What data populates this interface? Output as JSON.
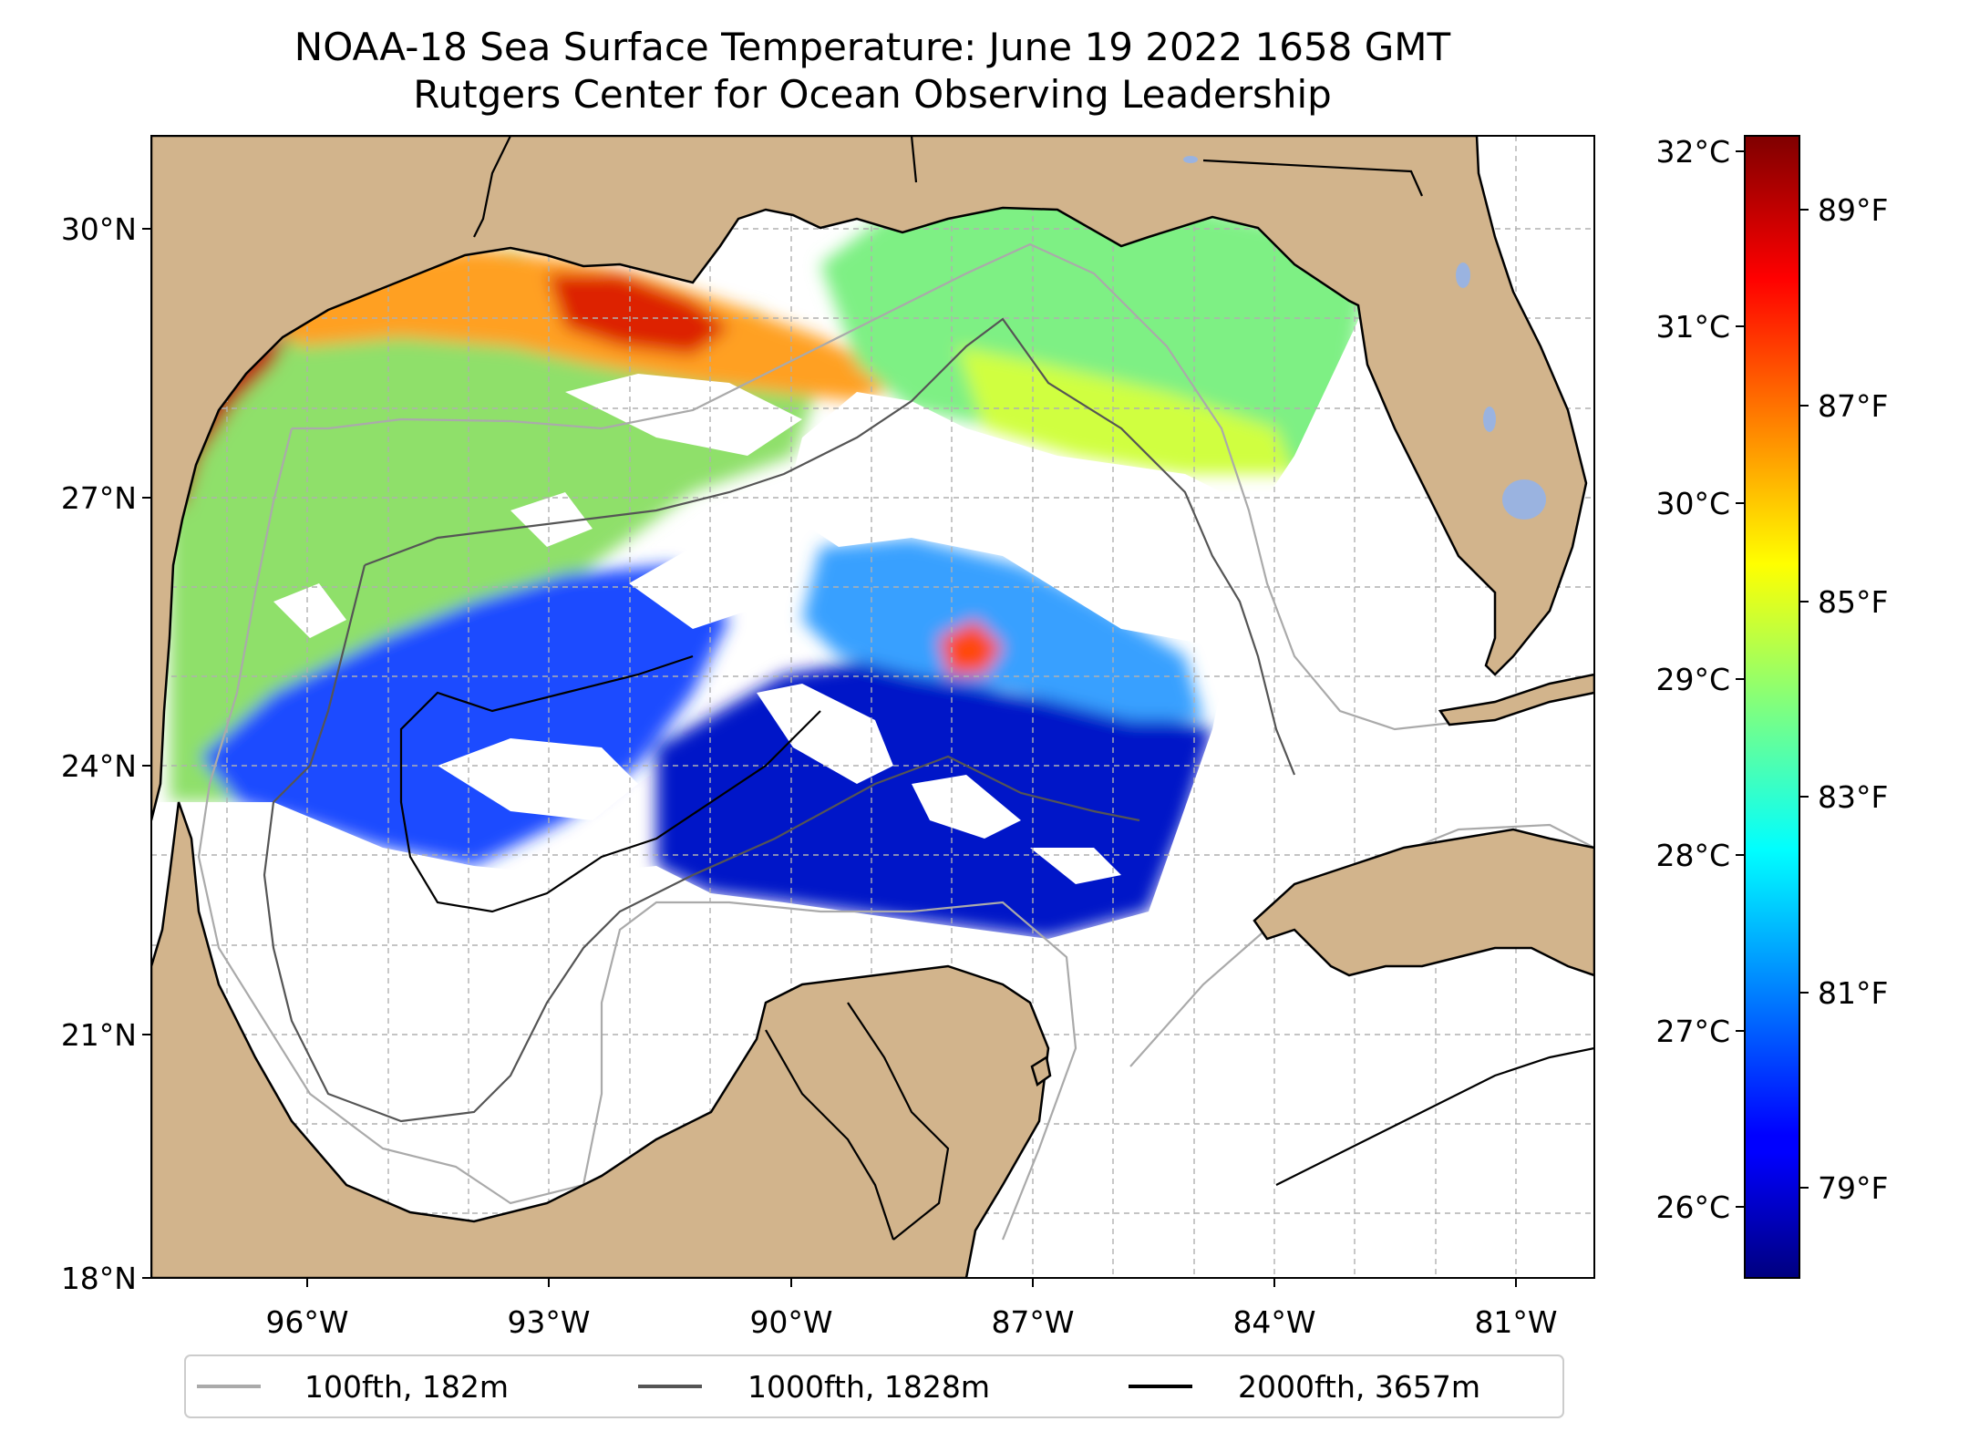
{
  "title": {
    "line1": "NOAA-18 Sea Surface Temperature: June 19 2022 1658 GMT",
    "line2": "Rutgers Center for Ocean Observing Leadership"
  },
  "map": {
    "lat_ticks": [
      "30°N",
      "27°N",
      "24°N",
      "21°N",
      "18°N"
    ],
    "lon_ticks": [
      "96°W",
      "93°W",
      "90°W",
      "87°W",
      "84°W",
      "81°W"
    ],
    "lat_range": [
      18,
      31.4
    ],
    "lon_range": [
      -98.3,
      -80.4
    ],
    "land_color": "#d2b48c",
    "lake_color": "#9ab3e0",
    "gridlines": true
  },
  "colorbar": {
    "celsius_ticks": [
      "32°C",
      "31°C",
      "30°C",
      "29°C",
      "28°C",
      "27°C",
      "26°C"
    ],
    "fahrenheit_ticks": [
      "89°F",
      "87°F",
      "85°F",
      "83°F",
      "81°F",
      "79°F"
    ],
    "range_c": [
      25.6,
      32.15
    ],
    "colormap": "jet"
  },
  "legend": {
    "items": [
      {
        "label": "100fth, 182m",
        "color": "#aaaaaa"
      },
      {
        "label": "1000fth, 1828m",
        "color": "#555555"
      },
      {
        "label": "2000fth, 3657m",
        "color": "#000000"
      }
    ]
  }
}
